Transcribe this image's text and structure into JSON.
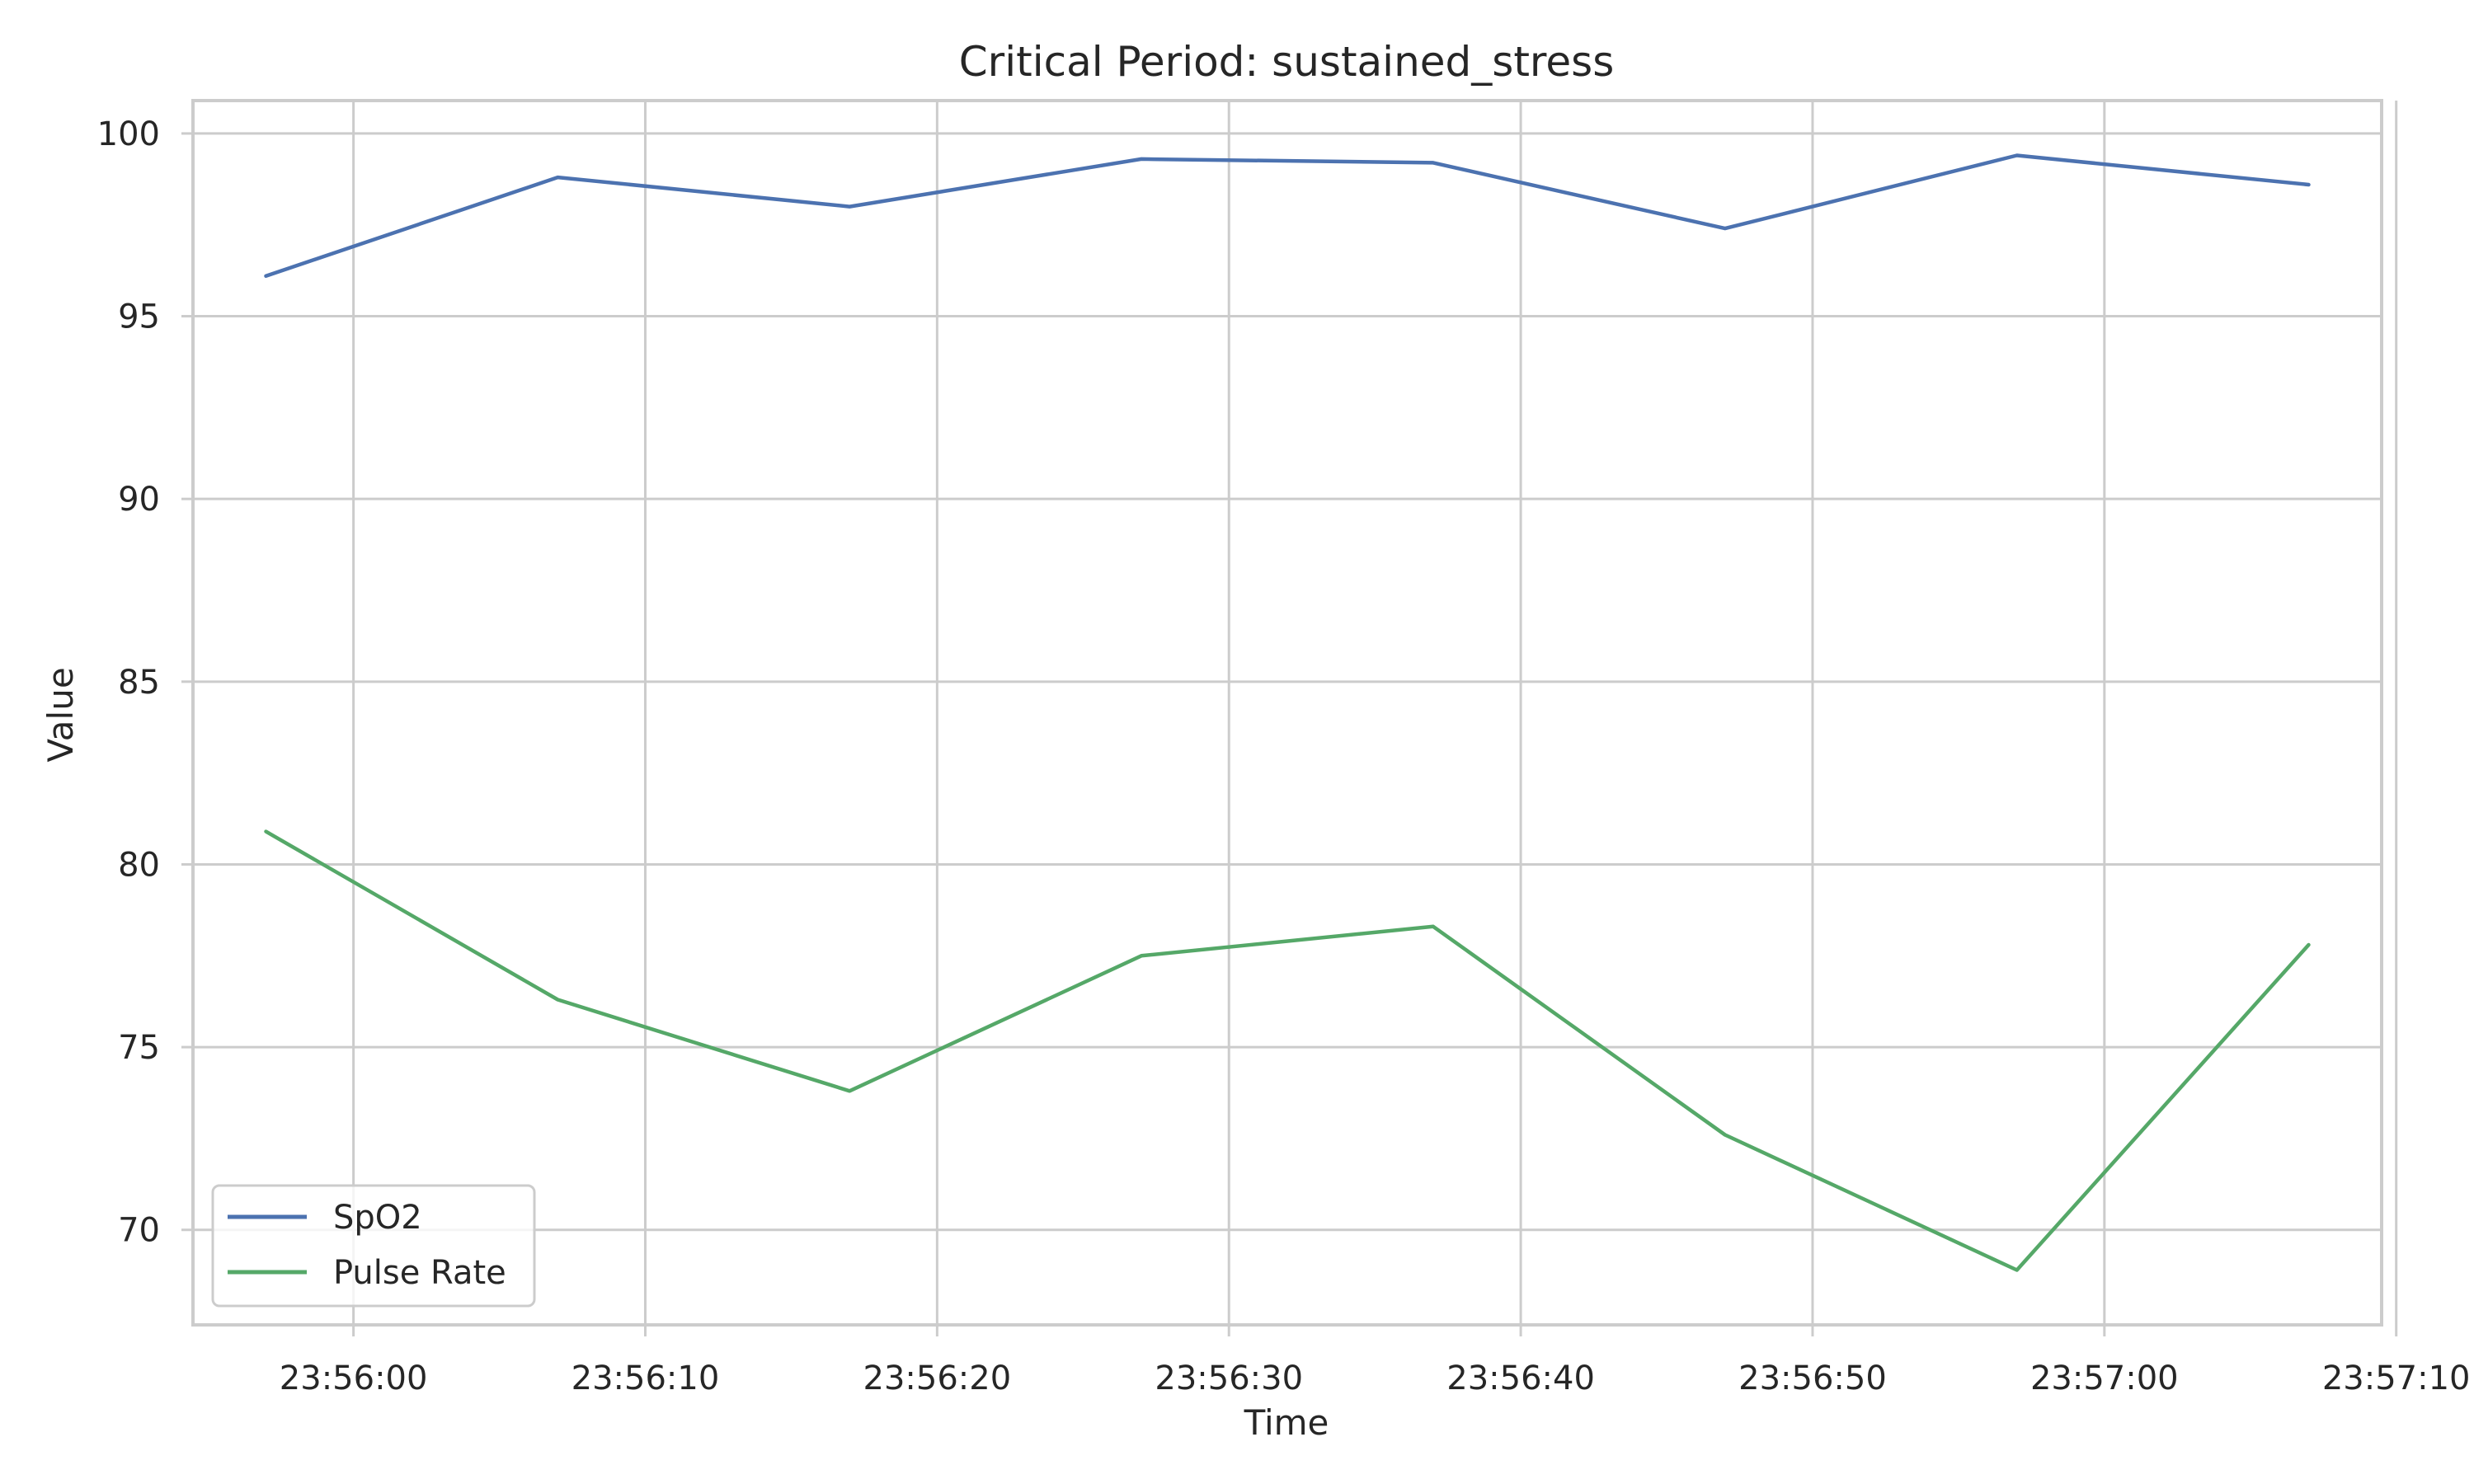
{
  "chart_data": {
    "type": "line",
    "title": "Critical Period: sustained_stress",
    "xlabel": "Time",
    "ylabel": "Value",
    "x": [
      "23:55:57",
      "23:56:07",
      "23:56:17",
      "23:56:27",
      "23:56:37",
      "23:56:47",
      "23:56:57",
      "23:57:07"
    ],
    "xlim": [
      "23:55:54.5",
      "23:57:09.5"
    ],
    "ylim": [
      67.4,
      100.9
    ],
    "xticks": [
      "23:56:00",
      "23:56:10",
      "23:56:20",
      "23:56:30",
      "23:56:40",
      "23:56:50",
      "23:57:00",
      "23:57:10"
    ],
    "yticks": [
      70,
      75,
      80,
      85,
      90,
      95,
      100
    ],
    "grid": true,
    "legend_position": "lower-left",
    "series": [
      {
        "name": "SpO2",
        "color": "#4c72b0",
        "values": [
          96.1,
          98.8,
          98.0,
          99.3,
          99.2,
          97.4,
          99.4,
          98.6
        ]
      },
      {
        "name": "Pulse Rate",
        "color": "#55a868",
        "values": [
          80.9,
          76.3,
          73.8,
          77.5,
          78.3,
          72.6,
          68.9,
          77.8
        ]
      }
    ]
  }
}
